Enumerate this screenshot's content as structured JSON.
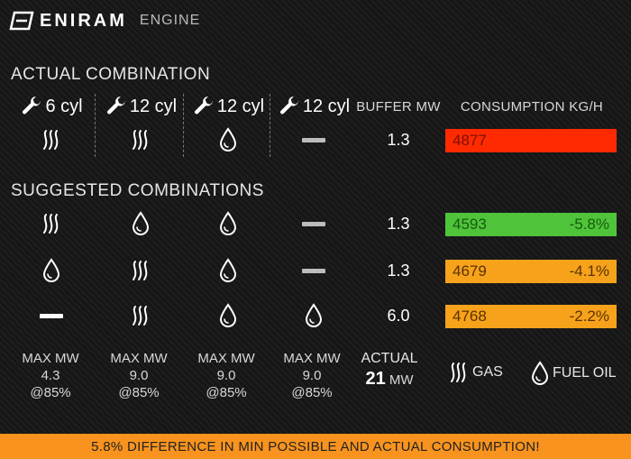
{
  "header": {
    "brand": "ENIRAM",
    "section": "ENGINE"
  },
  "actual": {
    "title": "ACTUAL COMBINATION",
    "engines": [
      "6 cyl",
      "12 cyl",
      "12 cyl",
      "12 cyl"
    ],
    "buffer_header": "BUFFER MW",
    "consumption_header": "CONSUMPTION KG/H",
    "row": {
      "modes": [
        "gas",
        "gas",
        "fuel-oil",
        "off"
      ],
      "buffer": "1.3",
      "consumption": "4877",
      "diff": "",
      "color": "#ff2a00"
    }
  },
  "suggested": {
    "title": "SUGGESTED COMBINATIONS",
    "rows": [
      {
        "modes": [
          "gas",
          "fuel-oil",
          "fuel-oil",
          "off"
        ],
        "buffer": "1.3",
        "consumption": "4593",
        "diff": "-5.8%",
        "color": "#4fc43a"
      },
      {
        "modes": [
          "fuel-oil",
          "gas",
          "fuel-oil",
          "off"
        ],
        "buffer": "1.3",
        "consumption": "4679",
        "diff": "-4.1%",
        "color": "#f7a21b"
      },
      {
        "modes": [
          "off",
          "gas",
          "fuel-oil",
          "fuel-oil"
        ],
        "buffer": "6.0",
        "consumption": "4768",
        "diff": "-2.2%",
        "color": "#f7a21b"
      }
    ]
  },
  "stats": [
    {
      "label": "MAX MW",
      "value": "4.3",
      "load": "@85%"
    },
    {
      "label": "MAX MW",
      "value": "9.0",
      "load": "@85%"
    },
    {
      "label": "MAX MW",
      "value": "9.0",
      "load": "@85%"
    },
    {
      "label": "MAX MW",
      "value": "9.0",
      "load": "@85%"
    }
  ],
  "actual_power": {
    "label": "ACTUAL",
    "value": "21",
    "unit": "MW"
  },
  "legend": {
    "gas": "GAS",
    "fuel_oil": "FUEL OIL"
  },
  "footer": "5.8% DIFFERENCE IN MIN POSSIBLE AND ACTUAL CONSUMPTION!"
}
